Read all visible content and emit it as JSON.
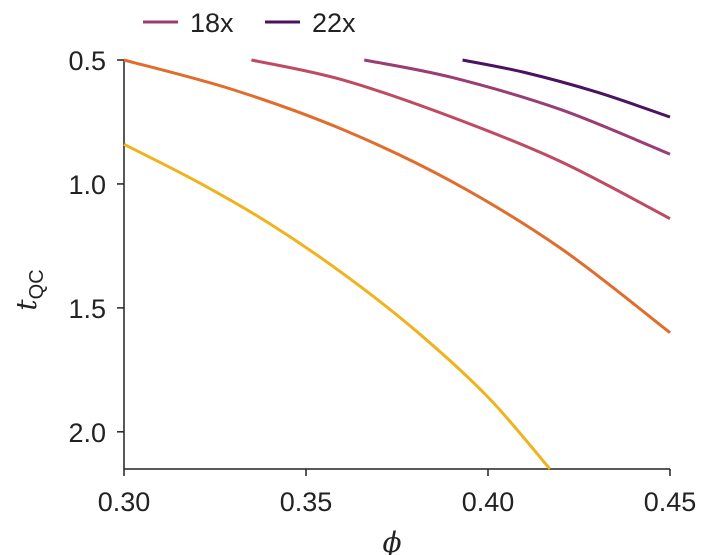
{
  "chart_data": {
    "type": "line",
    "title": "",
    "xlabel": "ϕ",
    "ylabel_main": "t",
    "ylabel_sub": "QC",
    "xlim": [
      0.3,
      0.45
    ],
    "ylim": [
      2.15,
      0.5
    ],
    "y_inverted": true,
    "xticks": [
      0.3,
      0.35,
      0.4,
      0.45
    ],
    "xtick_labels": [
      "0.30",
      "0.35",
      "0.40",
      "0.45"
    ],
    "yticks": [
      0.5,
      1.0,
      1.5,
      2.0
    ],
    "ytick_labels": [
      "0.5",
      "1.0",
      "1.5",
      "2.0"
    ],
    "legend_position": "top-left",
    "legend": [
      {
        "name": "18x",
        "color": "#9b3c74"
      },
      {
        "name": "22x",
        "color": "#4a1260"
      }
    ],
    "series": [
      {
        "name": "series-yellow",
        "color": "#f1b21d",
        "x": [
          0.3,
          0.32,
          0.34,
          0.36,
          0.38,
          0.4,
          0.417
        ],
        "y": [
          0.84,
          0.99,
          1.16,
          1.36,
          1.59,
          1.86,
          2.15
        ]
      },
      {
        "name": "series-orange",
        "color": "#e06d2c",
        "x": [
          0.3,
          0.33,
          0.36,
          0.39,
          0.42,
          0.45
        ],
        "y": [
          0.5,
          0.62,
          0.78,
          0.99,
          1.26,
          1.6
        ]
      },
      {
        "name": "series-rose",
        "color": "#be4a64",
        "x": [
          0.335,
          0.36,
          0.39,
          0.42,
          0.45
        ],
        "y": [
          0.5,
          0.58,
          0.73,
          0.91,
          1.14
        ]
      },
      {
        "name": "18x",
        "color": "#9b3c74",
        "x": [
          0.366,
          0.39,
          0.42,
          0.45
        ],
        "y": [
          0.5,
          0.57,
          0.7,
          0.88
        ]
      },
      {
        "name": "22x",
        "color": "#4a1260",
        "x": [
          0.393,
          0.41,
          0.43,
          0.45
        ],
        "y": [
          0.5,
          0.55,
          0.63,
          0.73
        ]
      }
    ]
  }
}
